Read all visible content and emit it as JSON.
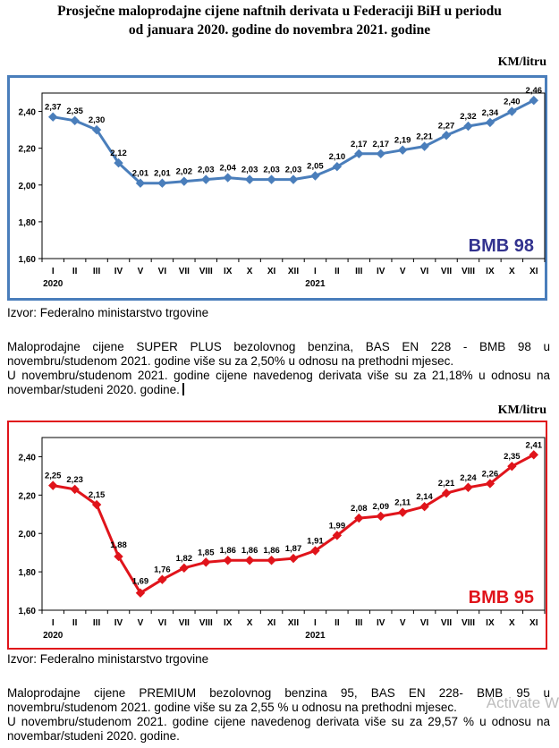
{
  "title_line1": "Prosječne maloprodajne cijene naftnih derivata u Federaciji BiH u periodu",
  "title_line2": "od januara 2020. godine do novembra 2021. godine",
  "source": "Izvor: Federalno ministarstvo trgovine",
  "paragraph1_line1": "Maloprodajne cijene SUPER PLUS bezolovnog benzina, BAS EN 228 - BMB 98 u novembru/studenom 2021. godine više su za  2,50% u odnosu na prethodni mjesec.",
  "paragraph1_line2": "U novembru/studenom 2021. godine cijene navedenog derivata više su za 21,18% u odnosu na novembar/studeni 2020. godine.",
  "paragraph2_line1": "Maloprodajne cijene PREMIUM bezolovnog benzina 95, BAS EN 228- BMB 95 u novembru/studenom 2021. godine više su za 2,55 % u odnosu na prethodni mjesec.",
  "paragraph2_line2": "U novembru/studenom 2021. godine cijene navedenog derivata više su za 29,57 % u odnosu na novembar/studeni 2020. godine.",
  "watermark": "Activate W",
  "chart_data": [
    {
      "type": "line",
      "label": "BMB 98",
      "unit": "KM/litru",
      "color": "#4a7ebb",
      "categories": [
        "I",
        "II",
        "III",
        "IV",
        "V",
        "VI",
        "VII",
        "VIII",
        "IX",
        "X",
        "XI",
        "XII",
        "I",
        "II",
        "III",
        "IV",
        "V",
        "VI",
        "VII",
        "VIII",
        "IX",
        "X",
        "XI"
      ],
      "year_labels": [
        "2020",
        "2021"
      ],
      "values": [
        2.37,
        2.35,
        2.3,
        2.12,
        2.01,
        2.01,
        2.02,
        2.03,
        2.04,
        2.03,
        2.03,
        2.03,
        2.05,
        2.1,
        2.17,
        2.17,
        2.19,
        2.21,
        2.27,
        2.32,
        2.34,
        2.4,
        2.46
      ],
      "value_labels": [
        "2,37",
        "2,35",
        "2,30",
        "2,12",
        "2,01",
        "2,01",
        "2,02",
        "2,03",
        "2,04",
        "2,03",
        "2,03",
        "2,03",
        "2,05",
        "2,10",
        "2,17",
        "2,17",
        "2,19",
        "2,21",
        "2,27",
        "2,32",
        "2,34",
        "2,40",
        "2,46"
      ],
      "yticks": [
        "1,60",
        "1,80",
        "2,00",
        "2,20",
        "2,40"
      ],
      "ylim": [
        1.6,
        2.5
      ],
      "grid": false
    },
    {
      "type": "line",
      "label": "BMB 95",
      "unit": "KM/litru",
      "color": "#e0141b",
      "categories": [
        "I",
        "II",
        "III",
        "IV",
        "V",
        "VI",
        "VII",
        "VIII",
        "IX",
        "X",
        "XI",
        "XII",
        "I",
        "II",
        "III",
        "IV",
        "V",
        "VI",
        "VII",
        "VIII",
        "IX",
        "X",
        "XI"
      ],
      "year_labels": [
        "2020",
        "2021"
      ],
      "values": [
        2.25,
        2.23,
        2.15,
        1.88,
        1.69,
        1.76,
        1.82,
        1.85,
        1.86,
        1.86,
        1.86,
        1.87,
        1.91,
        1.99,
        2.08,
        2.09,
        2.11,
        2.14,
        2.21,
        2.24,
        2.26,
        2.35,
        2.41
      ],
      "value_labels": [
        "2,25",
        "2,23",
        "2,15",
        "1,88",
        "1,69",
        "1,76",
        "1,82",
        "1,85",
        "1,86",
        "1,86",
        "1,86",
        "1,87",
        "1,91",
        "1,99",
        "2,08",
        "2,09",
        "2,11",
        "2,14",
        "2,21",
        "2,24",
        "2,26",
        "2,35",
        "2,41"
      ],
      "yticks": [
        "1,60",
        "1,80",
        "2,00",
        "2,20",
        "2,40"
      ],
      "ylim": [
        1.6,
        2.5
      ],
      "grid": false
    }
  ]
}
